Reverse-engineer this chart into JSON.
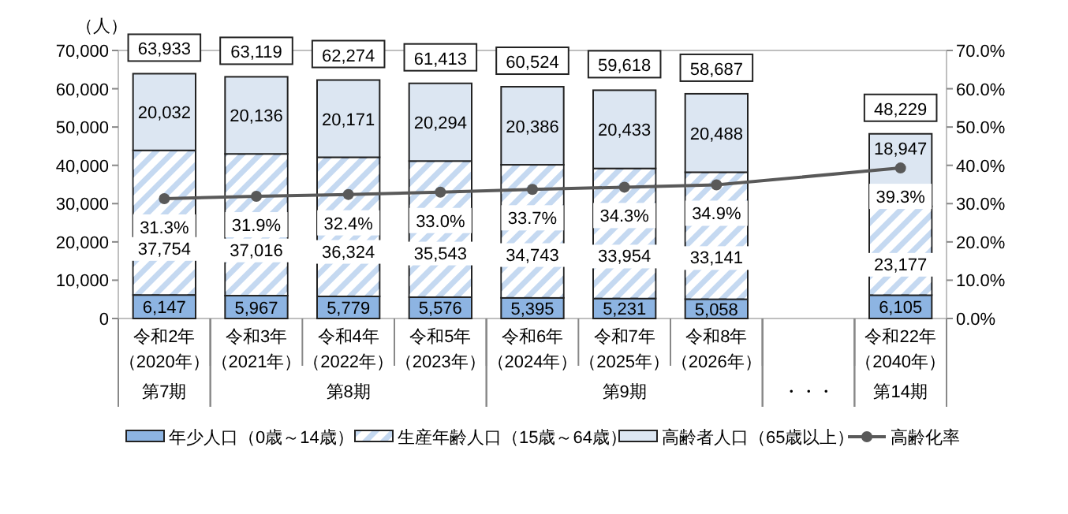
{
  "chart_data": {
    "type": "bar",
    "stacked": true,
    "ylabel": "（人）",
    "categories": [
      "令和2年（2020年）",
      "令和3年（2021年）",
      "令和4年（2022年）",
      "令和5年（2023年）",
      "令和6年（2024年）",
      "令和7年（2025年）",
      "令和8年（2026年）",
      null,
      "令和22年（2040年）"
    ],
    "series": [
      {
        "name": "年少人口（0歳～14歳）",
        "color": "#8db4e2",
        "values": [
          6147,
          5967,
          5779,
          5576,
          5395,
          5231,
          5058,
          null,
          6105
        ],
        "value_labels": [
          "6,147",
          "5,967",
          "5,779",
          "5,576",
          "5,395",
          "5,231",
          "5,058",
          null,
          "6,105"
        ]
      },
      {
        "name": "生産年齢人口（15歳～64歳）",
        "color": "#c5d9f1",
        "values": [
          37754,
          37016,
          36324,
          35543,
          34743,
          33954,
          33141,
          null,
          23177
        ],
        "value_labels": [
          "37,754",
          "37,016",
          "36,324",
          "35,543",
          "34,743",
          "33,954",
          "33,141",
          null,
          "23,177"
        ]
      },
      {
        "name": "高齢者人口（65歳以上）",
        "color": "#dce6f2",
        "values": [
          20032,
          20136,
          20171,
          20294,
          20386,
          20433,
          20488,
          null,
          18947
        ],
        "value_labels": [
          "20,032",
          "20,136",
          "20,171",
          "20,294",
          "20,386",
          "20,433",
          "20,488",
          null,
          "18,947"
        ]
      },
      {
        "name": "高齢化率",
        "type": "line",
        "axis": "y2",
        "color": "#595959",
        "marker": "circle",
        "value_labels": [
          "31.3%",
          "31.9%",
          "32.4%",
          "33.0%",
          "33.7%",
          "34.3%",
          "34.9%",
          null,
          "39.3%"
        ],
        "values": [
          31.3,
          31.9,
          32.4,
          33.0,
          33.7,
          34.3,
          34.9,
          null,
          39.3
        ]
      }
    ],
    "totals": [
      "63,933",
      "63,119",
      "62,274",
      "61,413",
      "60,524",
      "59,618",
      "58,687",
      null,
      "48,229"
    ],
    "ylim": [
      0,
      70000
    ],
    "yticks": [
      0,
      {
        "value": 10000,
        "label": "10,000"
      },
      {
        "value": 20000,
        "label": "20,000"
      },
      {
        "value": 30000,
        "label": "30,000"
      },
      {
        "value": 40000,
        "label": "40,000"
      },
      {
        "value": 50000,
        "label": "50,000"
      },
      {
        "value": 60000,
        "label": "60,000"
      },
      {
        "value": 70000,
        "label": "70,000"
      }
    ],
    "y2lim": [
      0,
      70
    ],
    "y2ticks": [
      {
        "value": 0,
        "label": "0.0%"
      },
      {
        "value": 10,
        "label": "10.0%"
      },
      {
        "value": 20,
        "label": "20.0%"
      },
      {
        "value": 30,
        "label": "30.0%"
      },
      {
        "value": 40,
        "label": "40.0%"
      },
      {
        "value": 50,
        "label": "50.0%"
      },
      {
        "value": 60,
        "label": "60.0%"
      },
      {
        "value": 70,
        "label": "70.0%"
      }
    ],
    "annotations": [
      "第7期",
      "第8期",
      "第9期",
      "・・・",
      "第14期"
    ],
    "grid": false,
    "legend": "bottom"
  }
}
